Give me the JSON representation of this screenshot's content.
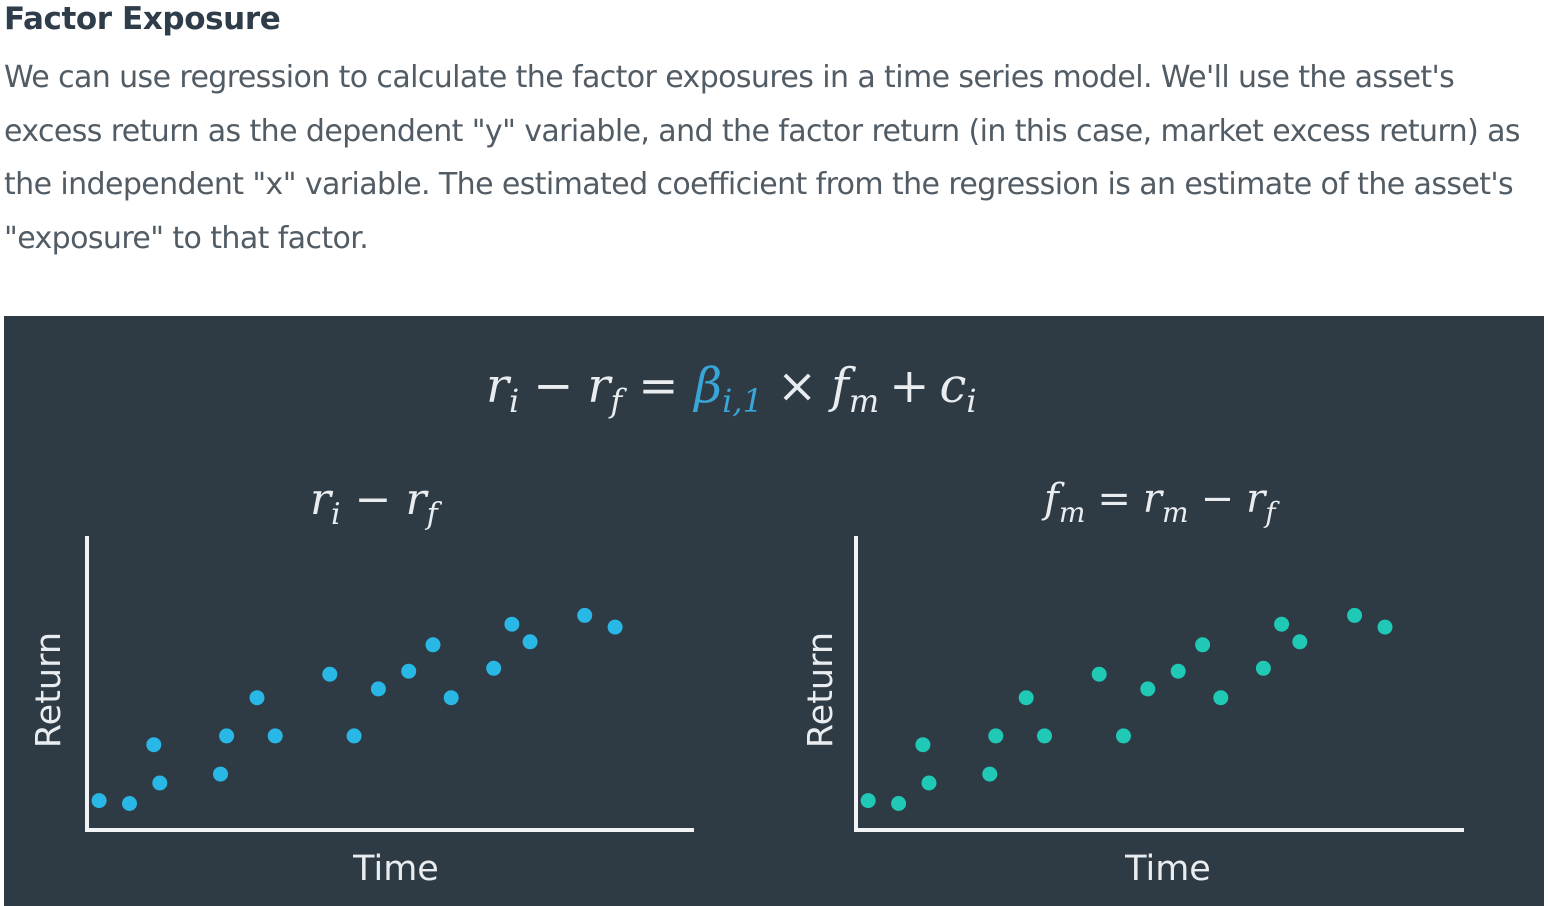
{
  "heading": "Factor Exposure",
  "paragraph": "We can use regression to calculate the factor exposures in a time series model. We'll use the asset's excess return as the dependent \"y\" variable, and the factor return (in this case, market excess return) as the independent \"x\" variable. The estimated coefficient from the regression is an estimate of the asset's \"exposure\" to that factor.",
  "figure": {
    "background": "#2e3a44",
    "equation": {
      "r": "r",
      "i": "i",
      "minus": "−",
      "f": "f",
      "equals": "=",
      "beta": "β",
      "beta_sub": "i,1",
      "beta_color": "#3aa6d8",
      "times": "×",
      "fm_f": "f",
      "fm_m": "m",
      "plus": "+",
      "c": "c",
      "c_sub": "i"
    }
  },
  "chart_data": [
    {
      "type": "scatter",
      "title": "r_i − r_f",
      "title_parts": {
        "r1": "r",
        "s1": "i",
        "op": "−",
        "r2": "r",
        "s2": "f"
      },
      "xlabel": "Time",
      "ylabel": "Return",
      "color": "#29b7e6",
      "xlim": [
        0,
        10
      ],
      "ylim": [
        0,
        10
      ],
      "points": [
        [
          0.2,
          1.0
        ],
        [
          0.7,
          0.9
        ],
        [
          1.1,
          2.9
        ],
        [
          1.2,
          1.6
        ],
        [
          2.2,
          1.9
        ],
        [
          2.3,
          3.2
        ],
        [
          2.8,
          4.5
        ],
        [
          3.1,
          3.2
        ],
        [
          4.0,
          5.3
        ],
        [
          4.4,
          3.2
        ],
        [
          4.8,
          4.8
        ],
        [
          5.3,
          5.4
        ],
        [
          5.7,
          6.3
        ],
        [
          6.0,
          4.5
        ],
        [
          6.7,
          5.5
        ],
        [
          7.0,
          7.0
        ],
        [
          7.3,
          6.4
        ],
        [
          8.2,
          7.3
        ],
        [
          8.7,
          6.9
        ]
      ]
    },
    {
      "type": "scatter",
      "title": "f_m = r_m − r_f",
      "title_parts": {
        "f": "f",
        "sm": "m",
        "eq": "=",
        "r1": "r",
        "s1": "m",
        "op": "−",
        "r2": "r",
        "s2": "f"
      },
      "xlabel": "Time",
      "ylabel": "Return",
      "color": "#1fc9b5",
      "xlim": [
        0,
        10
      ],
      "ylim": [
        0,
        10
      ],
      "points": [
        [
          0.2,
          1.0
        ],
        [
          0.7,
          0.9
        ],
        [
          1.1,
          2.9
        ],
        [
          1.2,
          1.6
        ],
        [
          2.2,
          1.9
        ],
        [
          2.3,
          3.2
        ],
        [
          2.8,
          4.5
        ],
        [
          3.1,
          3.2
        ],
        [
          4.0,
          5.3
        ],
        [
          4.4,
          3.2
        ],
        [
          4.8,
          4.8
        ],
        [
          5.3,
          5.4
        ],
        [
          5.7,
          6.3
        ],
        [
          6.0,
          4.5
        ],
        [
          6.7,
          5.5
        ],
        [
          7.0,
          7.0
        ],
        [
          7.3,
          6.4
        ],
        [
          8.2,
          7.3
        ],
        [
          8.7,
          6.9
        ]
      ]
    }
  ]
}
